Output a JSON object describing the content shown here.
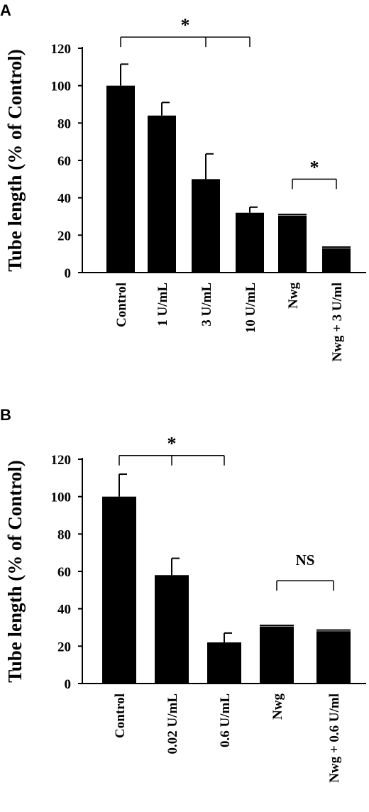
{
  "chart_data": [
    {
      "panel": "A",
      "type": "bar",
      "ylabel": "Tube length (% of Control)",
      "ylim": [
        0,
        120
      ],
      "yticks": [
        "0",
        "20",
        "40",
        "60",
        "80",
        "100",
        "120"
      ],
      "categories": [
        "Control",
        "1 U/mL",
        "3 U/mL",
        "10 U/mL",
        "Nwg",
        "Nwg + 3 U/ml"
      ],
      "values": [
        100,
        84,
        50,
        32,
        30.5,
        13
      ],
      "errors": [
        11.5,
        7,
        13.5,
        3,
        0.6,
        0.6
      ],
      "bar_color": "#000000",
      "annotations": [
        {
          "label": "*",
          "from": 0,
          "to": 3,
          "middle": 2,
          "level": 126
        },
        {
          "label": "*",
          "from": 4,
          "to": 5,
          "level": 50
        }
      ]
    },
    {
      "panel": "B",
      "type": "bar",
      "ylabel": "Tube length (% of Control)",
      "ylim": [
        0,
        120
      ],
      "yticks": [
        "0",
        "20",
        "40",
        "60",
        "80",
        "100",
        "120"
      ],
      "categories": [
        "Control",
        "0.02 U/mL",
        "0.6 U/mL",
        "Nwg",
        "Nwg + 0.6 U/ml"
      ],
      "values": [
        100,
        58,
        22,
        30.5,
        28
      ],
      "errors": [
        12,
        9,
        5,
        0.6,
        0.6
      ],
      "bar_color": "#000000",
      "annotations": [
        {
          "label": "*",
          "from": 0,
          "to": 2,
          "middle": 1,
          "level": 122
        },
        {
          "label": "NS",
          "from": 3,
          "to": 4,
          "level": 55
        }
      ]
    }
  ]
}
